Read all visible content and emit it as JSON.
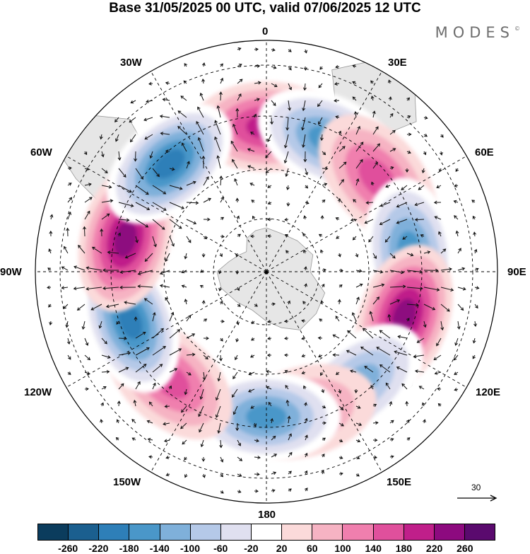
{
  "title": "Base 31/05/2025 00 UTC, valid 07/06/2025 12 UTC",
  "logo": "MODES",
  "logo_mark": "©",
  "map": {
    "projection": "south-polar-stereographic",
    "labels": {
      "lon_0": "0",
      "lon_30e": "30E",
      "lon_60e": "60E",
      "lon_90e": "90E",
      "lon_120e": "120E",
      "lon_150e": "150E",
      "lon_180": "180",
      "lon_150w": "150W",
      "lon_120w": "120W",
      "lon_90w": "90W",
      "lon_60w": "60W",
      "lon_30w": "30W"
    },
    "reference_vector": "30",
    "land_color": "#e6e6e6",
    "anomalies": [
      {
        "lon_deg": 0,
        "sign": "positive",
        "peak": 180
      },
      {
        "lon_deg": 25,
        "sign": "negative",
        "peak": -180
      },
      {
        "lon_deg": 50,
        "sign": "positive",
        "peak": 140
      },
      {
        "lon_deg": 82,
        "sign": "negative",
        "peak": -180
      },
      {
        "lon_deg": 108,
        "sign": "positive",
        "peak": 240
      },
      {
        "lon_deg": 140,
        "sign": "negative",
        "peak": -140
      },
      {
        "lon_deg": 165,
        "sign": "positive",
        "peak": 100
      },
      {
        "lon_deg": 180,
        "sign": "negative",
        "peak": -180
      },
      {
        "lon_deg": 222,
        "sign": "positive",
        "peak": 160
      },
      {
        "lon_deg": 250,
        "sign": "negative",
        "peak": -220
      },
      {
        "lon_deg": 283,
        "sign": "positive",
        "peak": 240
      },
      {
        "lon_deg": 318,
        "sign": "negative",
        "peak": -220
      }
    ]
  },
  "colorbar": {
    "colors": [
      "#0b3c5d",
      "#1b5f8f",
      "#2e7fb8",
      "#4a97c9",
      "#7fb0da",
      "#b5c9e8",
      "#e0e0f0",
      "#ffffff",
      "#fbdada",
      "#f6b3c3",
      "#f07fae",
      "#e0509c",
      "#c01f8a",
      "#8d0a7f",
      "#5a0a6e"
    ],
    "ticks": [
      "-260",
      "-220",
      "-180",
      "-140",
      "-100",
      "-60",
      "-20",
      "20",
      "60",
      "100",
      "140",
      "180",
      "220",
      "260"
    ]
  }
}
